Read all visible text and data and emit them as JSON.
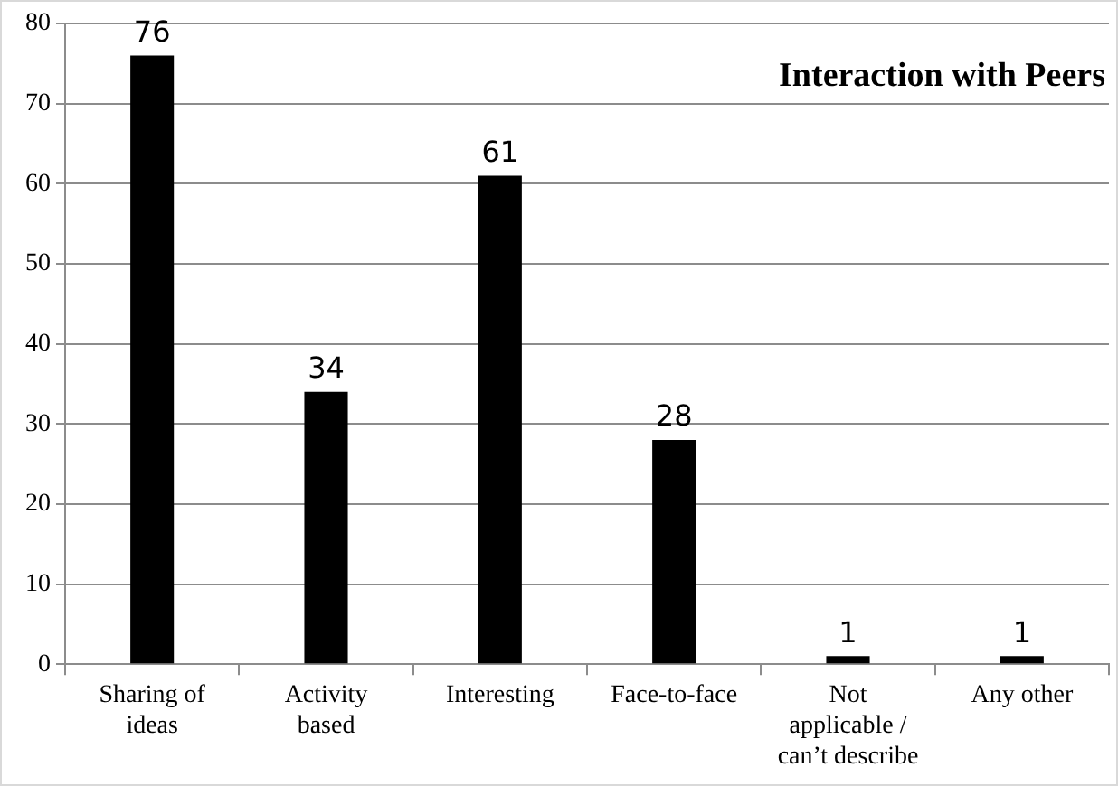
{
  "chart_data": {
    "type": "bar",
    "title": "Interaction with Peers",
    "categories": [
      "Sharing of ideas",
      "Activity based",
      "Interesting",
      "Face-to-face",
      "Not applicable / can’t describe",
      "Any other"
    ],
    "values": [
      76,
      34,
      61,
      28,
      1,
      1
    ],
    "color": "#000000",
    "ylim": [
      0,
      80
    ],
    "yticks": [
      0,
      10,
      20,
      30,
      40,
      50,
      60,
      70,
      80
    ],
    "grid": "y",
    "data_labels": true
  }
}
